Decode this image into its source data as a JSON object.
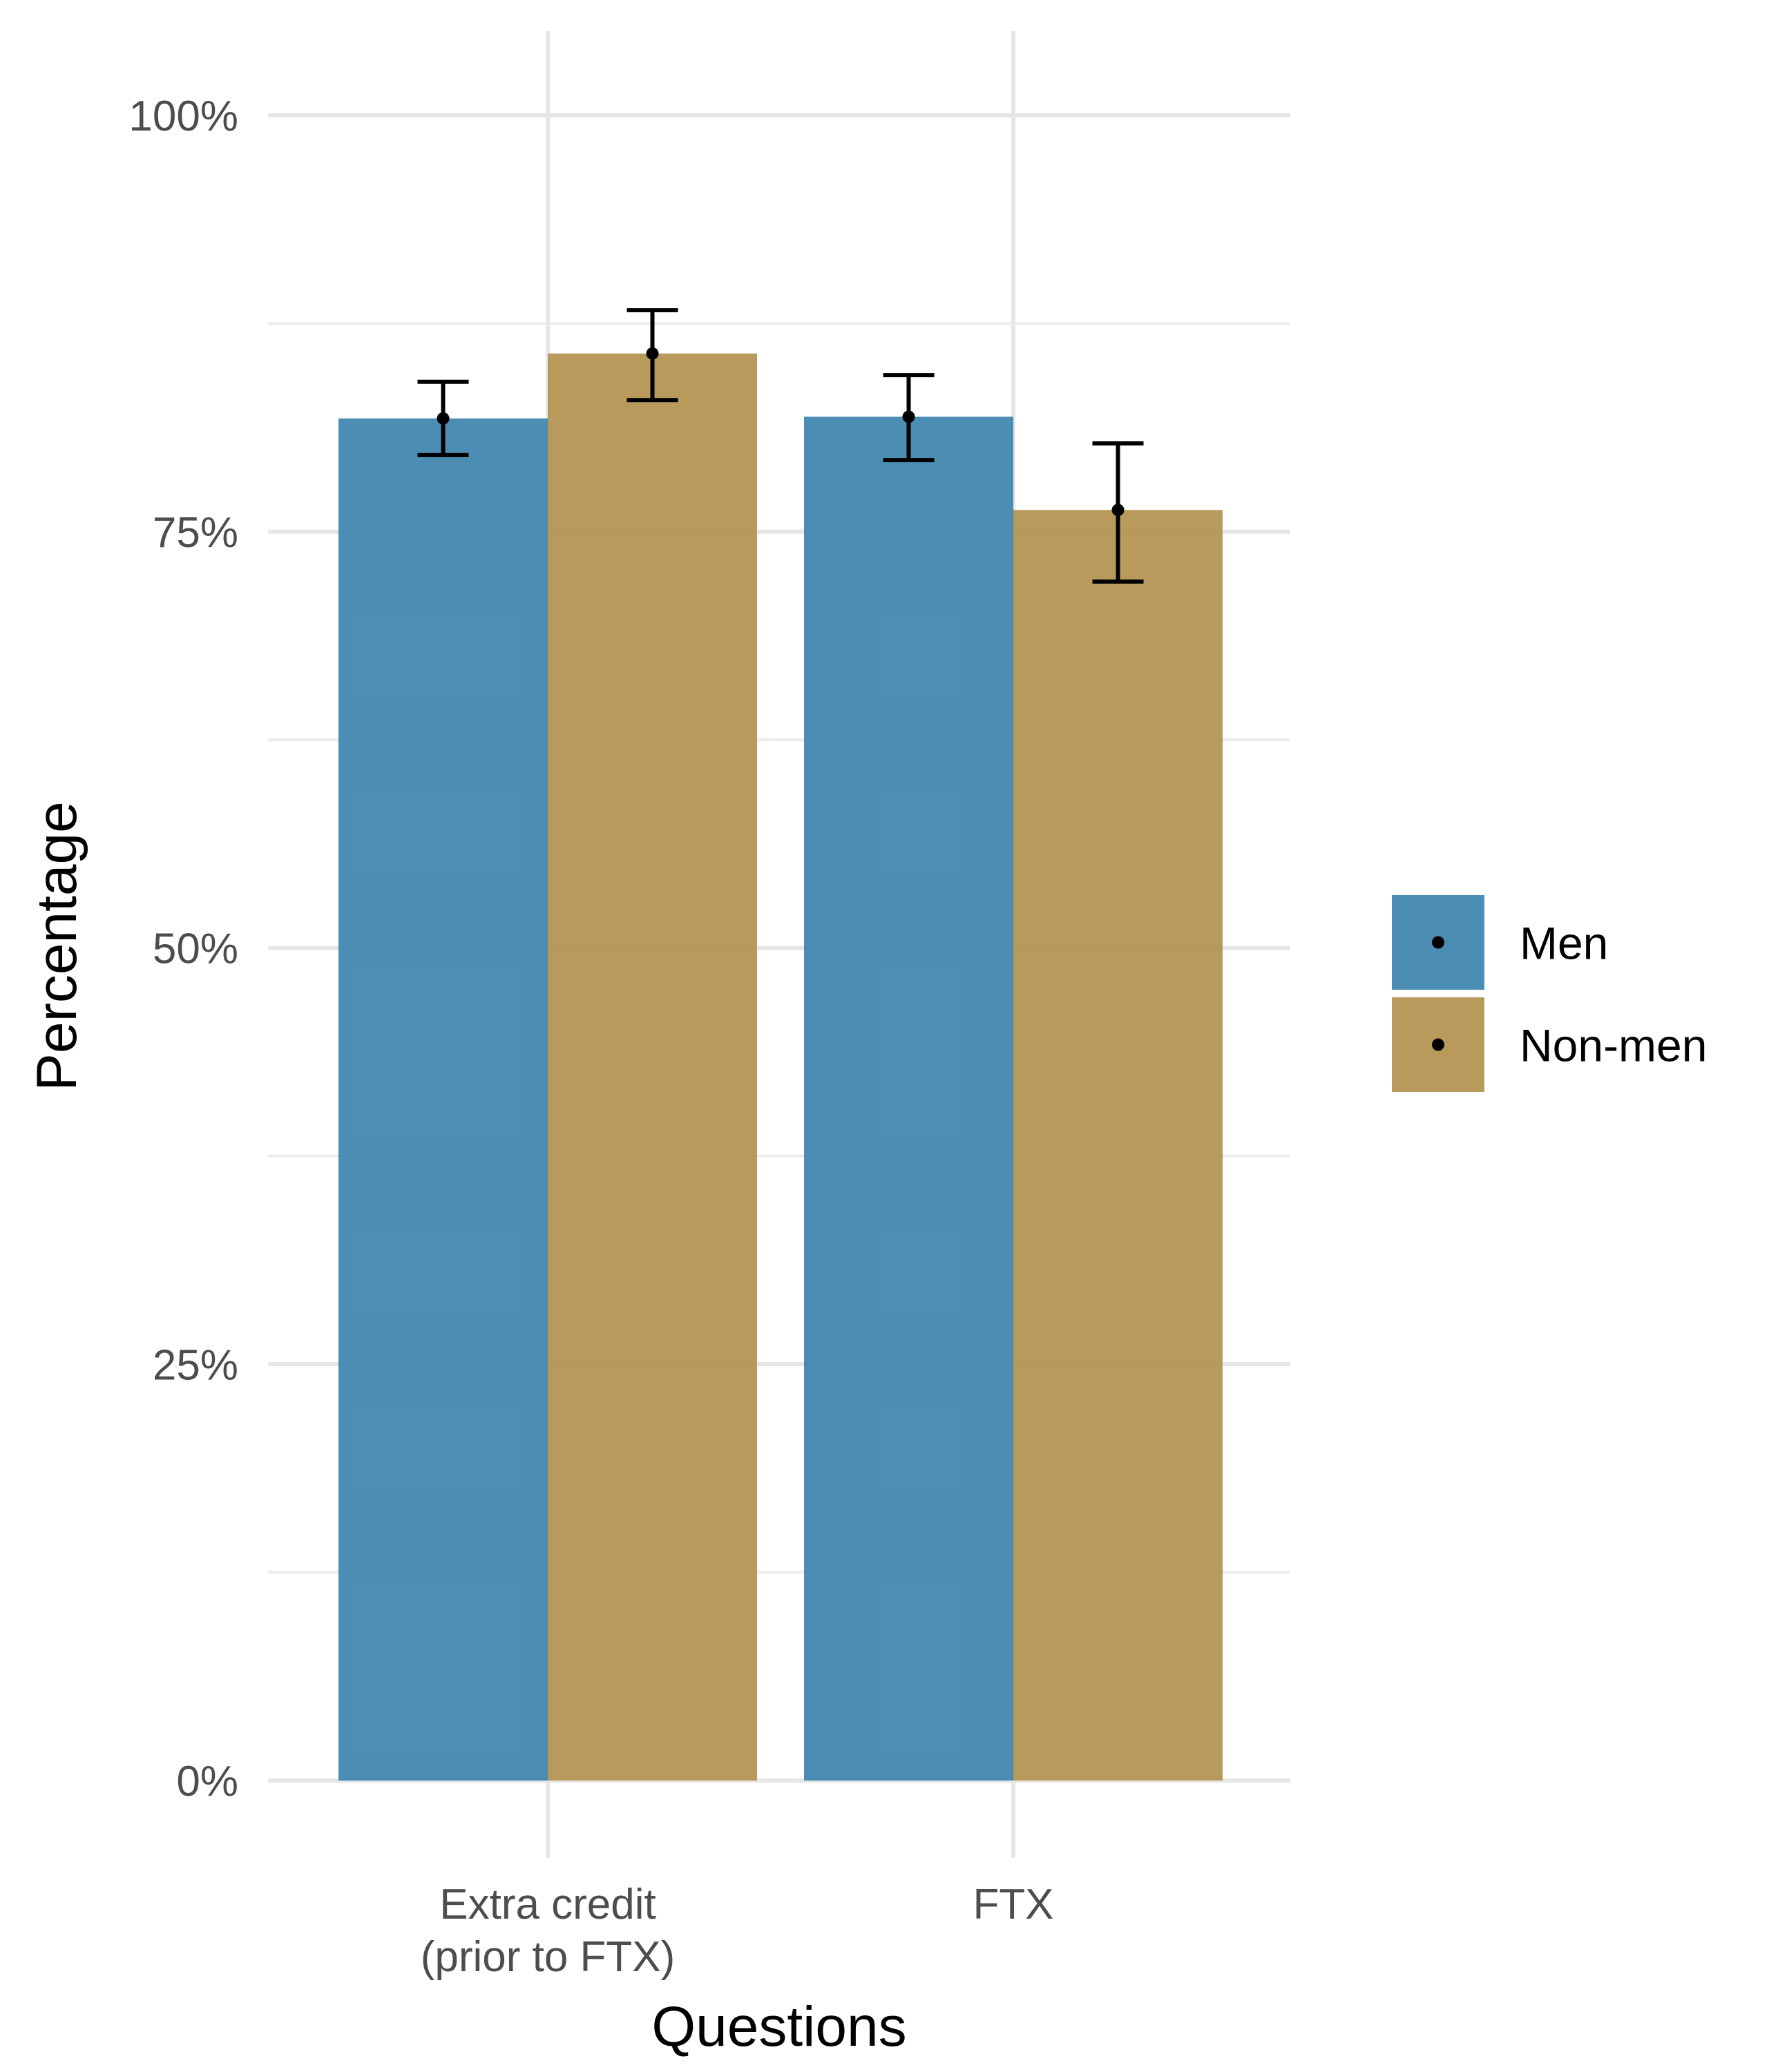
{
  "chart_data": {
    "type": "bar",
    "xlabel": "Questions",
    "ylabel": "Percentage",
    "categories": [
      [
        "Extra credit",
        "(prior to FTX)"
      ],
      [
        "FTX"
      ]
    ],
    "ylim": [
      0,
      100
    ],
    "yticks": [
      {
        "value": 0,
        "label": "0%"
      },
      {
        "value": 25,
        "label": "25%"
      },
      {
        "value": 50,
        "label": "50%"
      },
      {
        "value": 75,
        "label": "75%"
      },
      {
        "value": 100,
        "label": "100%"
      }
    ],
    "grid": true,
    "legend_position": "right",
    "error_bars": true,
    "series": [
      {
        "name": "Men",
        "color": "#3d84ad",
        "values": [
          81.8,
          81.9
        ],
        "err_low": [
          79.6,
          79.3
        ],
        "err_high": [
          84.0,
          84.4
        ]
      },
      {
        "name": "Non-men",
        "color": "#b3914f",
        "values": [
          85.7,
          76.3
        ],
        "err_low": [
          82.9,
          72.0
        ],
        "err_high": [
          88.3,
          80.3
        ]
      }
    ]
  }
}
